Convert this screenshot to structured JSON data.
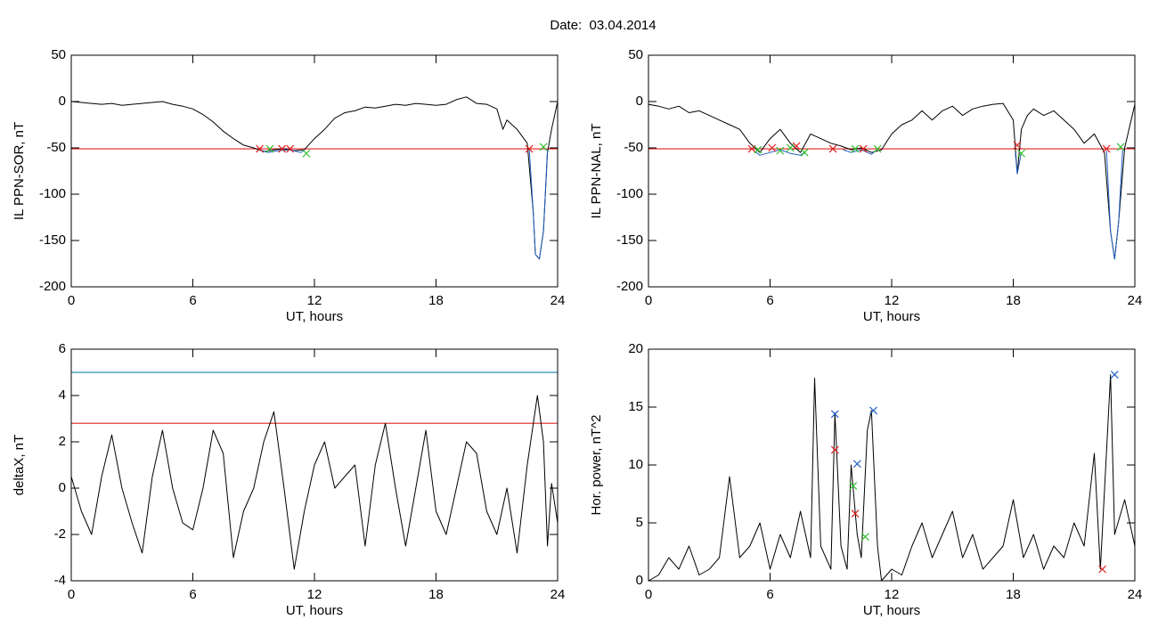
{
  "title": "Date:  03.04.2014",
  "chart_data": [
    {
      "type": "line",
      "ylabel": "IL PPN-SOR, nT",
      "xlabel": "UT, hours",
      "xlim": [
        0,
        24
      ],
      "xticks": [
        0,
        6,
        12,
        18,
        24
      ],
      "ylim": [
        -200,
        50
      ],
      "yticks": [
        50,
        0,
        -50,
        -100,
        -150,
        -200
      ],
      "hlines": [
        {
          "value": -51,
          "color": "#e02020"
        }
      ],
      "series": [
        {
          "color": "#000000",
          "x": [
            0,
            0.5,
            1,
            1.5,
            2,
            2.5,
            3,
            3.5,
            4,
            4.5,
            5,
            5.5,
            6,
            6.5,
            7,
            7.5,
            8,
            8.5,
            9,
            9.5,
            10,
            10.5,
            11,
            11.5,
            12,
            12.5,
            13,
            13.5,
            14,
            14.5,
            15,
            15.5,
            16,
            16.5,
            17,
            17.5,
            18,
            18.5,
            19,
            19.5,
            20,
            20.5,
            21,
            21.3,
            21.5,
            22,
            22.5,
            22.8,
            22.9,
            23.1,
            23.3,
            23.5,
            23.7,
            24
          ],
          "values": [
            0,
            -1,
            -2,
            -3,
            -2,
            -4,
            -3,
            -2,
            -1,
            0,
            -3,
            -5,
            -8,
            -14,
            -22,
            -32,
            -40,
            -47,
            -50,
            -54,
            -52,
            -51,
            -53,
            -52,
            -40,
            -30,
            -18,
            -12,
            -10,
            -6,
            -7,
            -5,
            -3,
            -4,
            -2,
            -3,
            -4,
            -3,
            2,
            5,
            -2,
            -3,
            -8,
            -30,
            -20,
            -30,
            -45,
            -120,
            -165,
            -170,
            -140,
            -55,
            -30,
            0
          ]
        },
        {
          "color": "#1f5fbf",
          "x": [
            9.3,
            9.7,
            10.2,
            10.8,
            11.3,
            11.5,
            12,
            22.6,
            22.8,
            22.9,
            23.1,
            23.3,
            23.5
          ],
          "values": [
            -52,
            -55,
            -53,
            -52,
            -55,
            -53,
            null,
            -52,
            -120,
            -165,
            -170,
            -140,
            -52
          ]
        },
        {
          "color": "#e02020",
          "marker": "x",
          "x": [
            9.3,
            10.4,
            10.8,
            22.6
          ],
          "values": [
            -51,
            -51,
            -51,
            -51
          ]
        },
        {
          "color": "#30c030",
          "marker": "x",
          "x": [
            9.8,
            11.6,
            23.3
          ],
          "values": [
            -51,
            -56,
            -49
          ]
        }
      ]
    },
    {
      "type": "line",
      "ylabel": "IL PPN-NAL, nT",
      "xlabel": "UT, hours",
      "xlim": [
        0,
        24
      ],
      "xticks": [
        0,
        6,
        12,
        18,
        24
      ],
      "ylim": [
        -200,
        50
      ],
      "yticks": [
        50,
        0,
        -50,
        -100,
        -150,
        -200
      ],
      "hlines": [
        {
          "value": -51,
          "color": "#e02020"
        }
      ],
      "series": [
        {
          "color": "#000000",
          "x": [
            0,
            0.5,
            1,
            1.5,
            2,
            2.5,
            3,
            3.5,
            4,
            4.5,
            5,
            5.5,
            6,
            6.5,
            7,
            7.5,
            8,
            8.5,
            9,
            9.5,
            10,
            10.5,
            11,
            11.5,
            12,
            12.5,
            13,
            13.5,
            14,
            14.5,
            15,
            15.5,
            16,
            16.5,
            17,
            17.5,
            18,
            18.2,
            18.4,
            18.7,
            19,
            19.5,
            20,
            20.5,
            21,
            21.5,
            22,
            22.5,
            22.8,
            23,
            23.2,
            23.5,
            24
          ],
          "values": [
            -3,
            -5,
            -8,
            -5,
            -12,
            -10,
            -15,
            -20,
            -25,
            -30,
            -45,
            -55,
            -40,
            -30,
            -45,
            -55,
            -35,
            -40,
            -45,
            -48,
            -52,
            -50,
            -55,
            -52,
            -35,
            -25,
            -20,
            -10,
            -20,
            -10,
            -5,
            -15,
            -8,
            -5,
            -3,
            -2,
            -20,
            -78,
            -30,
            -15,
            -8,
            -15,
            -10,
            -20,
            -30,
            -45,
            -35,
            -55,
            -140,
            -170,
            -130,
            -50,
            -3
          ]
        },
        {
          "color": "#1f5fbf",
          "x": [
            5.2,
            5.5,
            6,
            6.5,
            7,
            7.5,
            7.8,
            8.5,
            9.6,
            10,
            10.5,
            11,
            11.2,
            14,
            18.1,
            18.2,
            18.4,
            20,
            22.6,
            22.8,
            23,
            23.2,
            23.4
          ],
          "values": [
            -53,
            -58,
            -55,
            -52,
            -56,
            -58,
            -53,
            null,
            -52,
            -55,
            -52,
            -57,
            -53,
            null,
            -55,
            -78,
            -55,
            null,
            -53,
            -140,
            -170,
            -130,
            -52
          ]
        },
        {
          "color": "#e02020",
          "marker": "x",
          "x": [
            5.1,
            6.1,
            7.3,
            9.1,
            10.6,
            18.2,
            22.6
          ],
          "values": [
            -51,
            -50,
            -48,
            -51,
            -51,
            -47,
            -51
          ]
        },
        {
          "color": "#30c030",
          "marker": "x",
          "x": [
            5.4,
            6.5,
            7.0,
            7.7,
            10.2,
            11.3,
            18.4,
            23.3
          ],
          "values": [
            -52,
            -53,
            -50,
            -55,
            -51,
            -51,
            -56,
            -49
          ]
        }
      ]
    },
    {
      "type": "line",
      "ylabel": "deltaX, nT",
      "xlabel": "UT, hours",
      "xlim": [
        0,
        24
      ],
      "xticks": [
        0,
        6,
        12,
        18,
        24
      ],
      "ylim": [
        -4,
        6
      ],
      "yticks": [
        -4,
        -2,
        0,
        2,
        4,
        6
      ],
      "hlines": [
        {
          "value": 5,
          "color": "#2a8fb0"
        },
        {
          "value": 2.8,
          "color": "#e02020"
        }
      ],
      "series": [
        {
          "color": "#000000",
          "x": [
            0,
            0.5,
            1,
            1.5,
            2,
            2.5,
            3,
            3.5,
            4,
            4.5,
            5,
            5.5,
            6,
            6.5,
            7,
            7.5,
            8,
            8.5,
            9,
            9.5,
            10,
            10.5,
            11,
            11.5,
            12,
            12.5,
            13,
            13.5,
            14,
            14.5,
            15,
            15.5,
            16,
            16.5,
            17,
            17.5,
            18,
            18.5,
            19,
            19.5,
            20,
            20.5,
            21,
            21.5,
            22,
            22.5,
            23,
            23.3,
            23.5,
            23.7,
            24
          ],
          "values": [
            0.5,
            -1,
            -2,
            0.5,
            2.3,
            0,
            -1.5,
            -2.8,
            0.5,
            2.5,
            0,
            -1.5,
            -1.8,
            0,
            2.5,
            1.5,
            -3,
            -1,
            0,
            2,
            3.3,
            0,
            -3.5,
            -1,
            1,
            2,
            0,
            0.5,
            1,
            -2.5,
            1,
            2.8,
            0,
            -2.5,
            0,
            2.5,
            -1,
            -2,
            0,
            2,
            1.5,
            -1,
            -2,
            0,
            -2.8,
            1,
            4,
            2,
            -2.5,
            0.2,
            -1.5
          ]
        }
      ]
    },
    {
      "type": "line",
      "ylabel": "Hor. power, nT^2",
      "xlabel": "UT, hours",
      "xlim": [
        0,
        24
      ],
      "xticks": [
        0,
        6,
        12,
        18,
        24
      ],
      "ylim": [
        0,
        20
      ],
      "yticks": [
        0,
        5,
        10,
        15,
        20
      ],
      "series": [
        {
          "color": "#000000",
          "x": [
            0,
            0.5,
            1,
            1.5,
            2,
            2.5,
            3,
            3.5,
            4,
            4.5,
            5,
            5.5,
            6,
            6.5,
            7,
            7.5,
            8,
            8.2,
            8.5,
            9,
            9.2,
            9.5,
            9.8,
            10,
            10.3,
            10.5,
            10.8,
            11,
            11.3,
            11.5,
            12,
            12.5,
            13,
            13.5,
            14,
            14.5,
            15,
            15.5,
            16,
            16.5,
            17,
            17.5,
            18,
            18.5,
            19,
            19.5,
            20,
            20.5,
            21,
            21.5,
            22,
            22.3,
            22.8,
            23,
            23.5,
            24
          ],
          "values": [
            0,
            0.5,
            2,
            1,
            3,
            0.5,
            1,
            2,
            9,
            2,
            3,
            5,
            1,
            4,
            2,
            6,
            2,
            17.5,
            3,
            1,
            14.5,
            3,
            1,
            10,
            4,
            2,
            13,
            14.7,
            3,
            0,
            1,
            0.5,
            3,
            5,
            2,
            4,
            6,
            2,
            4,
            1,
            2,
            3,
            7,
            2,
            4,
            1,
            3,
            2,
            5,
            3,
            11,
            1,
            17.8,
            4,
            7,
            3
          ]
        },
        {
          "color": "#2060c0",
          "marker": "x",
          "x": [
            9.2,
            10.3,
            11.1,
            23.0
          ],
          "values": [
            14.4,
            10.1,
            14.7,
            17.8
          ]
        },
        {
          "color": "#e02020",
          "marker": "x",
          "x": [
            9.2,
            10.2,
            22.4
          ],
          "values": [
            11.3,
            5.8,
            1
          ]
        },
        {
          "color": "#30c030",
          "marker": "x",
          "x": [
            10.1,
            10.7
          ],
          "values": [
            8.2,
            3.8
          ]
        }
      ]
    }
  ]
}
